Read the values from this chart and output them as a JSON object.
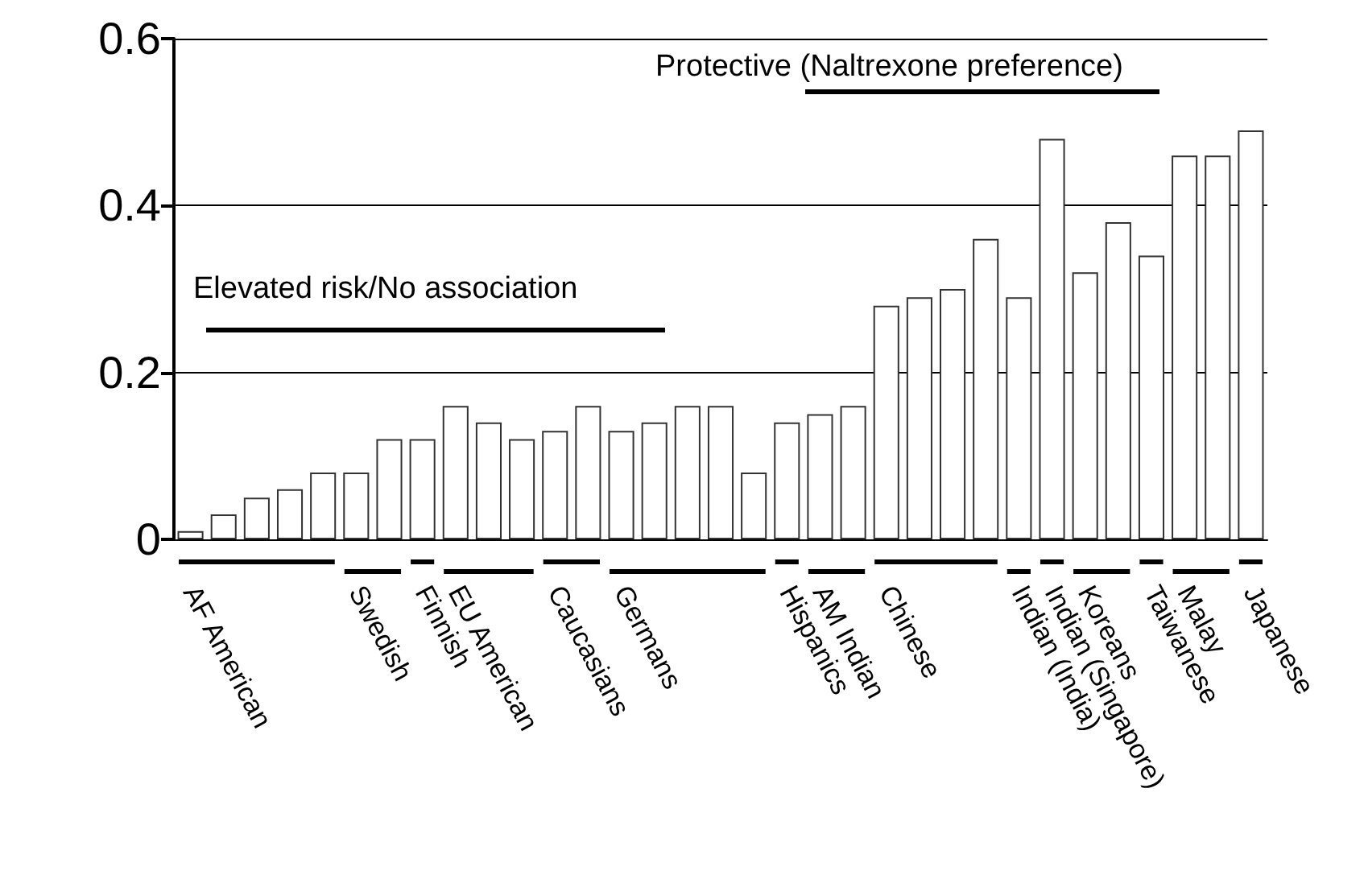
{
  "chart_data": {
    "type": "bar",
    "categories": [
      "AF American",
      null,
      null,
      null,
      null,
      "Swedish",
      null,
      "Finnish",
      "EU American",
      null,
      null,
      "Caucasians",
      null,
      "Germans",
      null,
      null,
      null,
      null,
      "Hispanics",
      "AM Indian",
      null,
      "Chinese",
      null,
      null,
      null,
      "Indian (India)",
      "Indian (Singapore)",
      "Koreans",
      null,
      "Taiwanese",
      "Malay",
      null,
      "Japanese"
    ],
    "values": [
      0.01,
      0.03,
      0.05,
      0.06,
      0.08,
      0.08,
      0.12,
      0.12,
      0.16,
      0.14,
      0.12,
      0.13,
      0.16,
      0.13,
      0.14,
      0.16,
      0.16,
      0.08,
      0.14,
      0.15,
      0.16,
      0.28,
      0.29,
      0.3,
      0.36,
      0.29,
      0.48,
      0.32,
      0.38,
      0.34,
      0.46,
      0.46,
      0.49
    ],
    "color": "#ffffff",
    "ylim": [
      0,
      0.6
    ],
    "yticks": [
      0,
      0.2,
      0.4,
      0.6
    ],
    "grid": "y",
    "annotations": [
      "Elevated risk/No association",
      "Protective (Naltrexone preference)"
    ]
  }
}
